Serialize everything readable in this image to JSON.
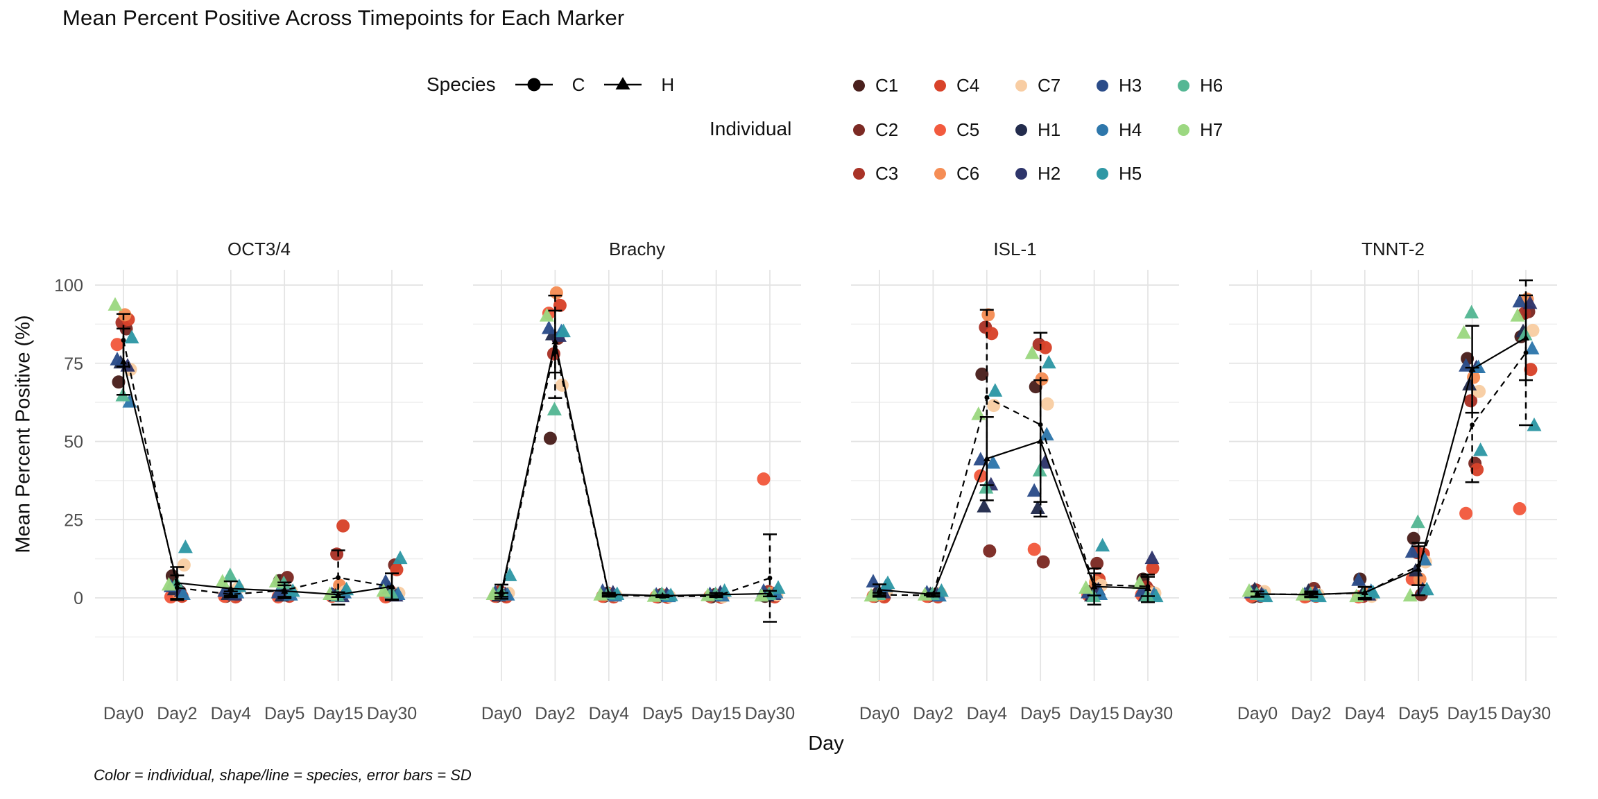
{
  "title": "Mean Percent Positive Across Timepoints for Each Marker",
  "caption": "Color = individual, shape/line = species, error bars = SD",
  "axes": {
    "y_label": "Mean Percent Positive (%)",
    "x_label": "Day",
    "y_ticks": [
      0,
      25,
      50,
      75,
      100
    ],
    "x_ticks": [
      "Day0",
      "Day2",
      "Day4",
      "Day5",
      "Day15",
      "Day30"
    ]
  },
  "legend": {
    "species": {
      "title": "Species",
      "items": [
        {
          "label": "C",
          "shape": "circle"
        },
        {
          "label": "H",
          "shape": "triangle"
        }
      ]
    },
    "individual": {
      "title": "Individual",
      "items": [
        {
          "label": "C1",
          "color": "#4a201d"
        },
        {
          "label": "C2",
          "color": "#7c2a24"
        },
        {
          "label": "C3",
          "color": "#a93327"
        },
        {
          "label": "C4",
          "color": "#d8432a"
        },
        {
          "label": "C5",
          "color": "#f25a3e"
        },
        {
          "label": "C6",
          "color": "#f58d55"
        },
        {
          "label": "C7",
          "color": "#f8cda3"
        },
        {
          "label": "H1",
          "color": "#232c4d"
        },
        {
          "label": "H2",
          "color": "#2e356b"
        },
        {
          "label": "H3",
          "color": "#2b4c89"
        },
        {
          "label": "H4",
          "color": "#2e77ab"
        },
        {
          "label": "H5",
          "color": "#2f98a5"
        },
        {
          "label": "H6",
          "color": "#55b794"
        },
        {
          "label": "H7",
          "color": "#9cd881"
        }
      ]
    }
  },
  "chart_data": {
    "type": "scatter",
    "description": "Faceted dot plot: individual values per day with species mean lines and SD error bars",
    "facets": [
      "OCT3/4",
      "Brachy",
      "ISL-1",
      "TNNT-2"
    ],
    "x_categories": [
      "Day0",
      "Day2",
      "Day4",
      "Day5",
      "Day15",
      "Day30"
    ],
    "xlabel": "Day",
    "ylabel": "Mean Percent Positive (%)",
    "ylim": [
      -15,
      105
    ],
    "grid": true,
    "individual_order": [
      "C1",
      "C2",
      "C3",
      "C4",
      "C5",
      "C6",
      "C7",
      "H1",
      "H2",
      "H3",
      "H4",
      "H5",
      "H6",
      "H7"
    ],
    "species_style": {
      "C": {
        "shape": "circle",
        "line": "dashed"
      },
      "H": {
        "shape": "triangle",
        "line": "solid"
      }
    },
    "summary": "lines = species mean per day, error bars = mean ± SD",
    "values": {
      "OCT3/4": [
        [
          69,
          86,
          88,
          89,
          81,
          90.5,
          73,
          75,
          74,
          76,
          62.5,
          83,
          64.5,
          93.5
        ],
        [
          7,
          2,
          1,
          0.5,
          0.3,
          1.5,
          10.5,
          2.5,
          2,
          3.5,
          1,
          16,
          4.5,
          4
        ],
        [
          0.5,
          1,
          1.5,
          0.3,
          0.5,
          1,
          3,
          1,
          0.8,
          2,
          1.5,
          3.5,
          7,
          5
        ],
        [
          5.5,
          6.5,
          1,
          0.5,
          0.3,
          1,
          2,
          0.5,
          1,
          1.5,
          0.8,
          2,
          4.5,
          5
        ],
        [
          1,
          1,
          14,
          23,
          0.5,
          4,
          2,
          0.5,
          0.3,
          1,
          1.5,
          2.5,
          0.5,
          1
        ],
        [
          0.5,
          10.5,
          2,
          9,
          0.3,
          1,
          1.5,
          3,
          0.5,
          5,
          1,
          12.5,
          1.5,
          2
        ]
      ],
      "Brachy": [
        [
          0.5,
          1,
          2,
          0.3,
          0.5,
          1,
          1.5,
          0.5,
          1,
          1.5,
          0.8,
          7,
          2,
          1
        ],
        [
          51,
          83,
          78,
          93.5,
          91,
          97.5,
          68,
          84,
          83.5,
          86,
          85,
          85,
          60,
          90
        ],
        [
          0.5,
          1,
          1.5,
          0.3,
          0.5,
          1,
          0.8,
          1,
          1.5,
          2,
          0.5,
          1,
          1.2,
          0.8
        ],
        [
          0.3,
          0.5,
          1,
          0.2,
          0.4,
          0.8,
          0.5,
          0.5,
          1,
          0.8,
          0.3,
          0.6,
          1,
          0.4
        ],
        [
          0.3,
          0.5,
          1,
          0.2,
          0.5,
          0.8,
          0.4,
          0.5,
          1.5,
          1,
          0.5,
          2,
          1,
          0.6
        ],
        [
          0.5,
          1,
          2,
          0.3,
          38,
          1.5,
          1,
          0.5,
          1,
          2,
          1.5,
          3,
          1,
          0.5
        ]
      ],
      "ISL-1": [
        [
          0.5,
          1,
          1.5,
          0.3,
          0.5,
          1,
          2,
          2,
          1.5,
          5,
          3.5,
          4.5,
          1,
          0.5
        ],
        [
          0.5,
          1,
          0.8,
          0.3,
          0.5,
          1,
          1.5,
          1,
          0.8,
          1.5,
          0.5,
          2,
          1,
          0.8
        ],
        [
          71.5,
          15,
          86.5,
          84.5,
          39,
          90.5,
          61.5,
          29,
          36,
          44,
          43,
          66,
          35,
          58.5
        ],
        [
          67.5,
          11.5,
          81,
          80,
          15.5,
          70,
          62,
          28.5,
          43,
          34,
          52,
          75,
          40.5,
          78
        ],
        [
          2,
          11,
          1,
          6,
          1,
          5,
          4,
          0.5,
          2.5,
          1.5,
          1,
          16.5,
          0.3,
          3
        ],
        [
          6,
          2,
          3.5,
          9.5,
          1,
          2,
          1.5,
          0.5,
          12.5,
          2,
          1,
          0.3,
          0.5,
          4.5
        ]
      ],
      "TNNT-2": [
        [
          0.3,
          0.5,
          2.5,
          1.5,
          0.5,
          1,
          2,
          2.5,
          1,
          1.5,
          0.5,
          0.3,
          1,
          2
        ],
        [
          0.5,
          3,
          1,
          0.5,
          0.3,
          1.5,
          1,
          2,
          1.5,
          1,
          0.5,
          0.3,
          1,
          0.8
        ],
        [
          6,
          1,
          0.5,
          1,
          0.3,
          1.5,
          0.5,
          1,
          0.8,
          5.5,
          2,
          1.5,
          1,
          0.3
        ],
        [
          19,
          1,
          14.5,
          14,
          6,
          6,
          11.5,
          8.5,
          2.5,
          14.5,
          12,
          2.5,
          24,
          0.5
        ],
        [
          76.5,
          43,
          63,
          41,
          27,
          70.5,
          66,
          68,
          73.5,
          74,
          73.5,
          47,
          91,
          84.5
        ],
        [
          83.5,
          91.5,
          91,
          73,
          28.5,
          95.5,
          85.5,
          85,
          94,
          94.5,
          79.5,
          55,
          84,
          90
        ]
      ]
    },
    "colors": {
      "C1": "#4a201d",
      "C2": "#7c2a24",
      "C3": "#a93327",
      "C4": "#d8432a",
      "C5": "#f25a3e",
      "C6": "#f58d55",
      "C7": "#f8cda3",
      "H1": "#232c4d",
      "H2": "#2e356b",
      "H3": "#2b4c89",
      "H4": "#2e77ab",
      "H5": "#2f98a5",
      "H6": "#55b794",
      "H7": "#9cd881"
    },
    "theme": {
      "grid_major": "#e3e3e3",
      "grid_minor": "#efefef",
      "axis_text": "#4d4d4d",
      "summary_color": "#000000"
    }
  }
}
